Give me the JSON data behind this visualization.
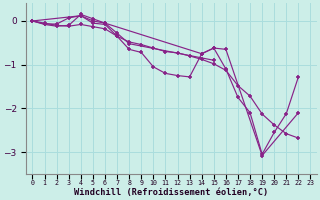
{
  "xlabel": "Windchill (Refroidissement éolien,°C)",
  "background_color": "#cceee8",
  "line_color": "#882288",
  "grid_color": "#aadddd",
  "xlim": [
    -0.5,
    23.5
  ],
  "ylim": [
    -3.5,
    0.4
  ],
  "yticks": [
    0,
    -1,
    -2,
    -3
  ],
  "xtick_labels": [
    "0",
    "1",
    "2",
    "3",
    "4",
    "5",
    "6",
    "7",
    "8",
    "9",
    "10",
    "11",
    "12",
    "13",
    "14",
    "15",
    "16",
    "17",
    "18",
    "19",
    "20",
    "21",
    "22",
    "23"
  ],
  "line1_x": [
    0,
    1,
    2,
    3,
    4,
    5,
    6,
    7,
    8,
    9,
    10,
    11,
    12,
    13,
    14,
    15,
    16,
    17,
    18,
    19,
    20,
    21,
    22
  ],
  "line1_y": [
    0.0,
    -0.07,
    -0.07,
    0.07,
    0.12,
    -0.05,
    -0.08,
    -0.35,
    -0.65,
    -0.72,
    -1.05,
    -1.2,
    -1.25,
    -1.28,
    -0.75,
    -0.62,
    -1.1,
    -1.75,
    -2.1,
    -3.05,
    -2.55,
    -2.12,
    -1.28
  ],
  "line2_x": [
    0,
    1,
    2,
    3,
    4,
    5,
    6,
    7,
    8,
    9,
    10,
    11,
    12,
    13,
    14,
    15,
    16,
    17,
    18,
    19,
    20,
    21,
    22
  ],
  "line2_y": [
    0.0,
    -0.05,
    -0.1,
    -0.12,
    -0.08,
    -0.13,
    -0.18,
    -0.35,
    -0.48,
    -0.54,
    -0.62,
    -0.7,
    -0.73,
    -0.8,
    -0.88,
    -0.98,
    -1.13,
    -1.48,
    -1.72,
    -2.13,
    -2.38,
    -2.58,
    -2.68
  ],
  "line3_x": [
    0,
    1,
    2,
    3,
    4,
    5,
    6,
    7,
    8,
    15
  ],
  "line3_y": [
    0.0,
    -0.08,
    -0.12,
    -0.1,
    0.15,
    0.05,
    -0.05,
    -0.28,
    -0.52,
    -0.9
  ],
  "line4_x": [
    0,
    4,
    5,
    6,
    14,
    15,
    16,
    19,
    22
  ],
  "line4_y": [
    0.0,
    0.12,
    0.0,
    -0.05,
    -0.75,
    -0.62,
    -0.65,
    -3.08,
    -2.1
  ]
}
